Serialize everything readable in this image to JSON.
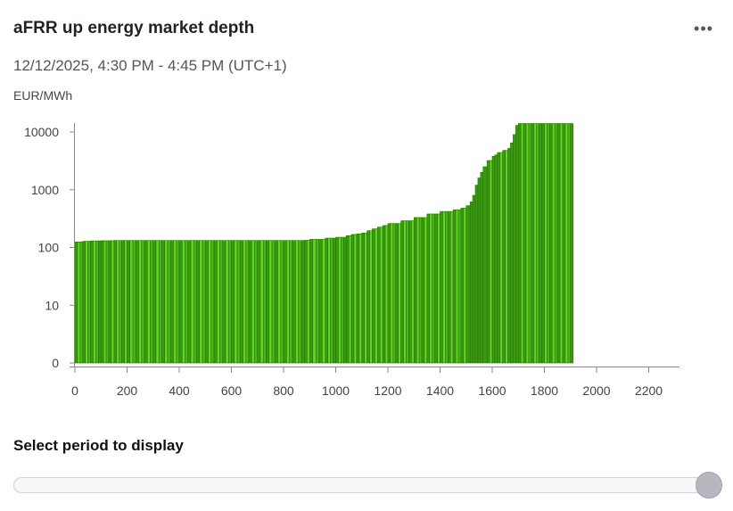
{
  "header": {
    "title": "aFRR up energy market depth",
    "menu_icon": "more-horizontal-icon",
    "menu_glyph": "•••",
    "period": "12/12/2025, 4:30 PM - 4:45 PM (UTC+1)",
    "unit": "EUR/MWh"
  },
  "chart_data": {
    "type": "bar",
    "ylabel": "EUR/MWh",
    "y_scale": "log",
    "xlim": [
      0,
      2300
    ],
    "x_ticks": [
      0,
      200,
      400,
      600,
      800,
      1000,
      1200,
      1400,
      1600,
      1800,
      2000,
      2200
    ],
    "y_ticks": [
      {
        "value": 1,
        "label": "0"
      },
      {
        "value": 10,
        "label": "10"
      },
      {
        "value": 100,
        "label": "100"
      },
      {
        "value": 1000,
        "label": "1000"
      },
      {
        "value": 10000,
        "label": "10000"
      }
    ],
    "colors": [
      "#3a9a10",
      "#48b816",
      "#5fd91f"
    ],
    "outline_color": "#2d6e0c",
    "series": [
      {
        "x": [
          0,
          30,
          60,
          100,
          150,
          200,
          300,
          400,
          500,
          600,
          700,
          800,
          880,
          900,
          960,
          1000,
          1040,
          1060,
          1080,
          1100,
          1120,
          1140,
          1160,
          1180,
          1200,
          1250,
          1300,
          1350,
          1400,
          1450,
          1480,
          1500,
          1515,
          1525,
          1535,
          1545,
          1555,
          1565,
          1580,
          1600,
          1610,
          1620,
          1640,
          1660,
          1670,
          1680,
          1690,
          1700,
          1720,
          1750,
          1790,
          1820,
          1850,
          1870,
          1900
        ],
        "y": [
          125,
          128,
          130,
          131,
          132,
          132,
          132,
          132,
          132,
          132,
          132,
          132,
          133,
          138,
          145,
          150,
          160,
          168,
          172,
          178,
          195,
          210,
          225,
          240,
          260,
          290,
          330,
          380,
          420,
          450,
          480,
          530,
          620,
          800,
          1200,
          1600,
          2000,
          2500,
          3200,
          3800,
          4000,
          4400,
          4800,
          5200,
          6500,
          9000,
          13000,
          14000,
          14000,
          14000,
          14000,
          14000,
          14000,
          14000,
          14000
        ]
      }
    ],
    "x_max": 1910
  },
  "footer": {
    "select_label": "Select period to display"
  },
  "slider": {
    "value": 1.0
  }
}
